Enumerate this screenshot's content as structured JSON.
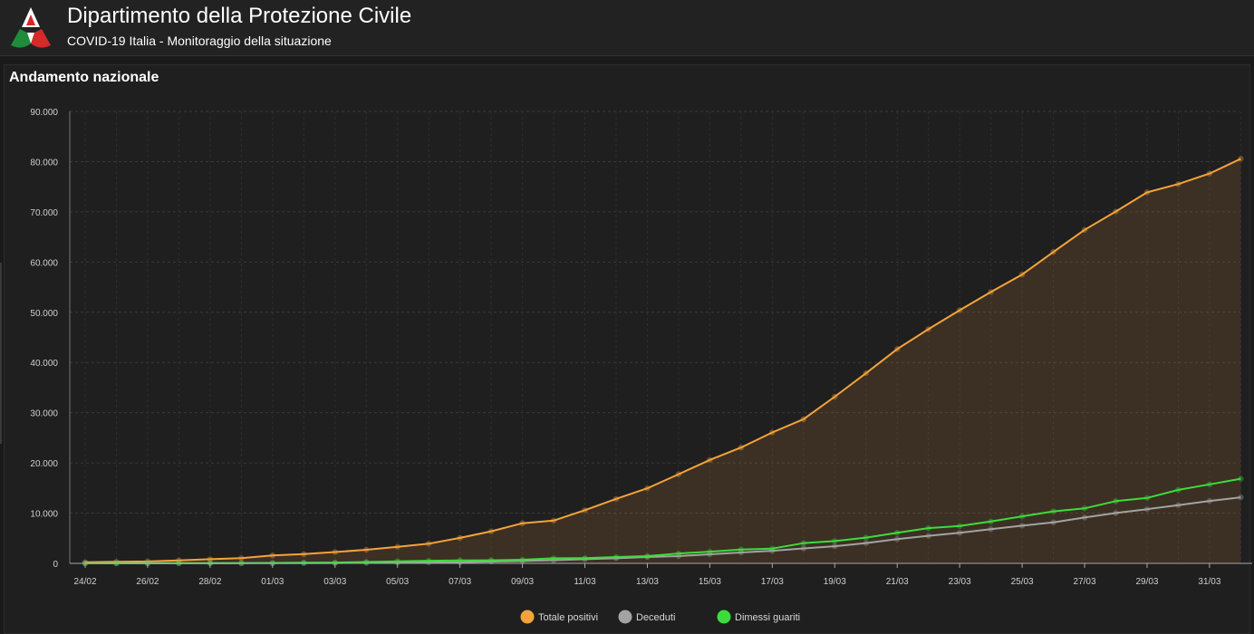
{
  "header": {
    "title": "Dipartimento della Protezione Civile",
    "subtitle": "COVID-19 Italia - Monitoraggio della situazione",
    "logo_icon": "protezione-civile-logo",
    "logo_colors": [
      "#1e8c3a",
      "#ffffff",
      "#d62a2a"
    ]
  },
  "panel": {
    "title": "Andamento nazionale"
  },
  "chart_data": {
    "type": "area",
    "title": "Andamento nazionale",
    "xlabel": "",
    "ylabel": "",
    "ylim": [
      0,
      90000
    ],
    "grid": true,
    "legend_position": "bottom-center",
    "x": [
      "24/02",
      "25/02",
      "26/02",
      "27/02",
      "28/02",
      "29/02",
      "01/03",
      "02/03",
      "03/03",
      "04/03",
      "05/03",
      "06/03",
      "07/03",
      "08/03",
      "09/03",
      "10/03",
      "11/03",
      "12/03",
      "13/03",
      "14/03",
      "15/03",
      "16/03",
      "17/03",
      "18/03",
      "19/03",
      "20/03",
      "21/03",
      "22/03",
      "23/03",
      "24/03",
      "25/03",
      "26/03",
      "27/03",
      "28/03",
      "29/03",
      "30/03",
      "31/03",
      "01/04"
    ],
    "x_tick_labels": [
      "24/02",
      "26/02",
      "28/02",
      "01/03",
      "03/03",
      "05/03",
      "07/03",
      "09/03",
      "11/03",
      "13/03",
      "15/03",
      "17/03",
      "19/03",
      "21/03",
      "23/03",
      "25/03",
      "27/03",
      "29/03",
      "31/03"
    ],
    "y_tick_labels": [
      "0",
      "10.000",
      "20.000",
      "30.000",
      "40.000",
      "50.000",
      "60.000",
      "70.000",
      "80.000",
      "90.000"
    ],
    "y_ticks": [
      0,
      10000,
      20000,
      30000,
      40000,
      50000,
      60000,
      70000,
      80000,
      90000
    ],
    "series": [
      {
        "name": "Totale positivi",
        "color": "#f5a33a",
        "fill": true,
        "values": [
          221,
          311,
          385,
          588,
          821,
          1049,
          1577,
          1835,
          2263,
          2706,
          3296,
          3916,
          5061,
          6387,
          7985,
          8514,
          10590,
          12839,
          14955,
          17750,
          20603,
          23073,
          26062,
          28710,
          33190,
          37860,
          42681,
          46638,
          50418,
          54030,
          57521,
          62013,
          66414,
          70065,
          73880,
          75528,
          77635,
          80572
        ]
      },
      {
        "name": "Deceduti",
        "color": "#a3a3a3",
        "fill": false,
        "values": [
          7,
          10,
          12,
          17,
          21,
          29,
          34,
          52,
          79,
          107,
          148,
          197,
          233,
          366,
          463,
          631,
          827,
          1016,
          1266,
          1441,
          1809,
          2158,
          2503,
          2978,
          3405,
          4032,
          4825,
          5476,
          6077,
          6820,
          7503,
          8165,
          9134,
          10023,
          10779,
          11591,
          12428,
          13155
        ]
      },
      {
        "name": "Dimessi guariti",
        "color": "#3ddc3d",
        "fill": false,
        "values": [
          1,
          1,
          3,
          45,
          46,
          50,
          83,
          149,
          160,
          276,
          414,
          523,
          589,
          622,
          724,
          1004,
          1045,
          1258,
          1439,
          1966,
          2335,
          2749,
          2941,
          4025,
          4440,
          5129,
          6072,
          7024,
          7432,
          8326,
          9362,
          10361,
          10950,
          12384,
          13030,
          14620,
          15729,
          16847
        ]
      }
    ]
  }
}
